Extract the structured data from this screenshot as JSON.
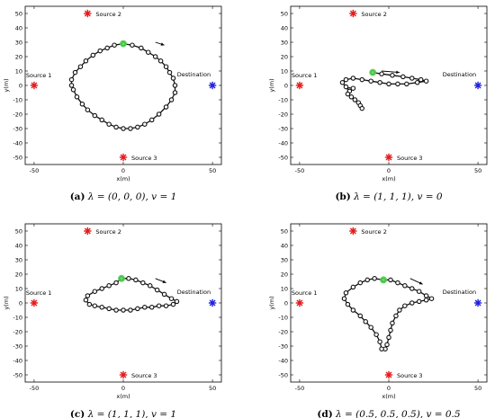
{
  "chart_data": [
    {
      "type": "scatter",
      "caption": {
        "label": "(a)",
        "text": "λ = (0, 0, 0), v = 1"
      },
      "xlabel": "x(m)",
      "ylabel": "y(m)",
      "xlim": [
        -55,
        55
      ],
      "ylim": [
        -55,
        55
      ],
      "xticks": [
        "-50",
        "0",
        "50"
      ],
      "yticks": [
        "50",
        "40",
        "30",
        "20",
        "10",
        "0",
        "-10",
        "-20",
        "-30",
        "-40",
        "-50"
      ],
      "grid": false,
      "sources": [
        {
          "name": "Source 1",
          "x": -50,
          "y": 0,
          "color": "#e41a1c"
        },
        {
          "name": "Source 2",
          "x": -20,
          "y": 50,
          "color": "#e41a1c"
        },
        {
          "name": "Source 3",
          "x": 0,
          "y": -50,
          "color": "#e41a1c"
        }
      ],
      "destination": {
        "name": "Destination",
        "x": 50,
        "y": 0,
        "color": "#1f1fdd"
      },
      "start": {
        "x": 0,
        "y": 29,
        "color": "#4fd24f"
      },
      "arrow": [
        [
          18,
          30
        ],
        [
          23,
          28
        ]
      ],
      "trajectory": [
        [
          0,
          29
        ],
        [
          5,
          28
        ],
        [
          10,
          26
        ],
        [
          14,
          23
        ],
        [
          18,
          20
        ],
        [
          21,
          17
        ],
        [
          24,
          13
        ],
        [
          26,
          9
        ],
        [
          28,
          5
        ],
        [
          29,
          0
        ],
        [
          29,
          -5
        ],
        [
          27,
          -10
        ],
        [
          24,
          -15
        ],
        [
          20,
          -20
        ],
        [
          16,
          -24
        ],
        [
          12,
          -27
        ],
        [
          8,
          -29
        ],
        [
          4,
          -30
        ],
        [
          0,
          -30
        ],
        [
          -4,
          -29
        ],
        [
          -8,
          -27
        ],
        [
          -12,
          -24
        ],
        [
          -16,
          -21
        ],
        [
          -20,
          -17
        ],
        [
          -23,
          -13
        ],
        [
          -26,
          -8
        ],
        [
          -28,
          -3
        ],
        [
          -29,
          0
        ],
        [
          -29,
          4
        ],
        [
          -27,
          9
        ],
        [
          -24,
          13
        ],
        [
          -21,
          17
        ],
        [
          -17,
          21
        ],
        [
          -13,
          24
        ],
        [
          -9,
          26
        ],
        [
          -5,
          28
        ],
        [
          0,
          29
        ]
      ]
    },
    {
      "type": "scatter",
      "caption": {
        "label": "(b)",
        "text": "λ = (1, 1, 1), v = 0"
      },
      "xlabel": "x(m)",
      "ylabel": "y(m)",
      "xlim": [
        -55,
        55
      ],
      "ylim": [
        -55,
        55
      ],
      "xticks": [
        "-50",
        "0",
        "50"
      ],
      "yticks": [
        "50",
        "40",
        "30",
        "20",
        "10",
        "0",
        "-10",
        "-20",
        "-30",
        "-40",
        "-50"
      ],
      "grid": false,
      "sources": [
        {
          "name": "Source 1",
          "x": -50,
          "y": 0,
          "color": "#e41a1c"
        },
        {
          "name": "Source 2",
          "x": -20,
          "y": 50,
          "color": "#e41a1c"
        },
        {
          "name": "Source 3",
          "x": 0,
          "y": -50,
          "color": "#e41a1c"
        }
      ],
      "destination": {
        "name": "Destination",
        "x": 50,
        "y": 0,
        "color": "#1f1fdd"
      },
      "start": {
        "x": -9,
        "y": 9,
        "color": "#4fd24f"
      },
      "arrow": [
        [
          -4,
          10
        ],
        [
          6,
          9
        ]
      ],
      "trajectory": [
        [
          -9,
          9
        ],
        [
          -4,
          8
        ],
        [
          2,
          7
        ],
        [
          8,
          6
        ],
        [
          13,
          5
        ],
        [
          18,
          4
        ],
        [
          21,
          3
        ],
        [
          16,
          2
        ],
        [
          10,
          1
        ],
        [
          5,
          1
        ],
        [
          0,
          1
        ],
        [
          -5,
          2
        ],
        [
          -10,
          3
        ],
        [
          -15,
          4
        ],
        [
          -20,
          5
        ],
        [
          -24,
          4
        ],
        [
          -26,
          2
        ],
        [
          -24,
          -1
        ],
        [
          -22,
          -3
        ],
        [
          -20,
          -2
        ],
        [
          -22,
          -4
        ],
        [
          -23,
          -6
        ],
        [
          -21,
          -8
        ],
        [
          -19,
          -10
        ],
        [
          -17,
          -12
        ],
        [
          -16,
          -14
        ],
        [
          -15,
          -16
        ]
      ]
    },
    {
      "type": "scatter",
      "caption": {
        "label": "(c)",
        "text": "λ = (1, 1, 1), v = 1"
      },
      "xlabel": "x(m)",
      "ylabel": "y(m)",
      "xlim": [
        -55,
        55
      ],
      "ylim": [
        -55,
        55
      ],
      "xticks": [
        "-50",
        "0",
        "50"
      ],
      "yticks": [
        "50",
        "40",
        "30",
        "20",
        "10",
        "0",
        "-10",
        "-20",
        "-30",
        "-40",
        "-50"
      ],
      "grid": false,
      "sources": [
        {
          "name": "Source 1",
          "x": -50,
          "y": 0,
          "color": "#e41a1c"
        },
        {
          "name": "Source 2",
          "x": -20,
          "y": 50,
          "color": "#e41a1c"
        },
        {
          "name": "Source 3",
          "x": 0,
          "y": -50,
          "color": "#e41a1c"
        }
      ],
      "destination": {
        "name": "Destination",
        "x": 50,
        "y": 0,
        "color": "#1f1fdd"
      },
      "start": {
        "x": -1,
        "y": 17,
        "color": "#4fd24f"
      },
      "arrow": [
        [
          18,
          17
        ],
        [
          24,
          14
        ]
      ],
      "trajectory": [
        [
          -1,
          17
        ],
        [
          3,
          17
        ],
        [
          7,
          16
        ],
        [
          11,
          14
        ],
        [
          15,
          12
        ],
        [
          19,
          9
        ],
        [
          23,
          6
        ],
        [
          27,
          3
        ],
        [
          30,
          1
        ],
        [
          28,
          -1
        ],
        [
          24,
          -2
        ],
        [
          20,
          -2
        ],
        [
          16,
          -3
        ],
        [
          12,
          -3
        ],
        [
          8,
          -4
        ],
        [
          4,
          -5
        ],
        [
          0,
          -5
        ],
        [
          -4,
          -5
        ],
        [
          -8,
          -4
        ],
        [
          -12,
          -3
        ],
        [
          -16,
          -2
        ],
        [
          -19,
          -1
        ],
        [
          -21,
          2
        ],
        [
          -20,
          5
        ],
        [
          -16,
          8
        ],
        [
          -12,
          10
        ],
        [
          -8,
          12
        ],
        [
          -4,
          14
        ],
        [
          -1,
          17
        ]
      ]
    },
    {
      "type": "scatter",
      "caption": {
        "label": "(d)",
        "text": "λ = (0.5, 0.5, 0.5), v = 0.5"
      },
      "xlabel": "x(m)",
      "ylabel": "y(m)",
      "xlim": [
        -55,
        55
      ],
      "ylim": [
        -55,
        55
      ],
      "xticks": [
        "-50",
        "0",
        "50"
      ],
      "yticks": [
        "50",
        "40",
        "30",
        "20",
        "10",
        "0",
        "-10",
        "-20",
        "-30",
        "-40",
        "-50"
      ],
      "grid": false,
      "sources": [
        {
          "name": "Source 1",
          "x": -50,
          "y": 0,
          "color": "#e41a1c"
        },
        {
          "name": "Source 2",
          "x": -20,
          "y": 50,
          "color": "#e41a1c"
        },
        {
          "name": "Source 3",
          "x": 0,
          "y": -50,
          "color": "#e41a1c"
        }
      ],
      "destination": {
        "name": "Destination",
        "x": 50,
        "y": 0,
        "color": "#1f1fdd"
      },
      "start": {
        "x": -3,
        "y": 16,
        "color": "#4fd24f"
      },
      "arrow": [
        [
          12,
          17
        ],
        [
          19,
          13
        ]
      ],
      "trajectory": [
        [
          -3,
          16
        ],
        [
          1,
          16
        ],
        [
          5,
          14
        ],
        [
          9,
          12
        ],
        [
          13,
          10
        ],
        [
          17,
          8
        ],
        [
          21,
          5
        ],
        [
          24,
          3
        ],
        [
          21,
          2
        ],
        [
          17,
          1
        ],
        [
          13,
          0
        ],
        [
          9,
          -2
        ],
        [
          6,
          -5
        ],
        [
          4,
          -9
        ],
        [
          2,
          -14
        ],
        [
          1,
          -19
        ],
        [
          0,
          -24
        ],
        [
          -1,
          -29
        ],
        [
          -2,
          -32
        ],
        [
          -4,
          -32
        ],
        [
          -5,
          -27
        ],
        [
          -7,
          -22
        ],
        [
          -10,
          -17
        ],
        [
          -13,
          -13
        ],
        [
          -16,
          -9
        ],
        [
          -20,
          -5
        ],
        [
          -23,
          -1
        ],
        [
          -25,
          3
        ],
        [
          -24,
          7
        ],
        [
          -20,
          11
        ],
        [
          -16,
          14
        ],
        [
          -12,
          16
        ],
        [
          -8,
          17
        ],
        [
          -3,
          16
        ]
      ]
    }
  ]
}
